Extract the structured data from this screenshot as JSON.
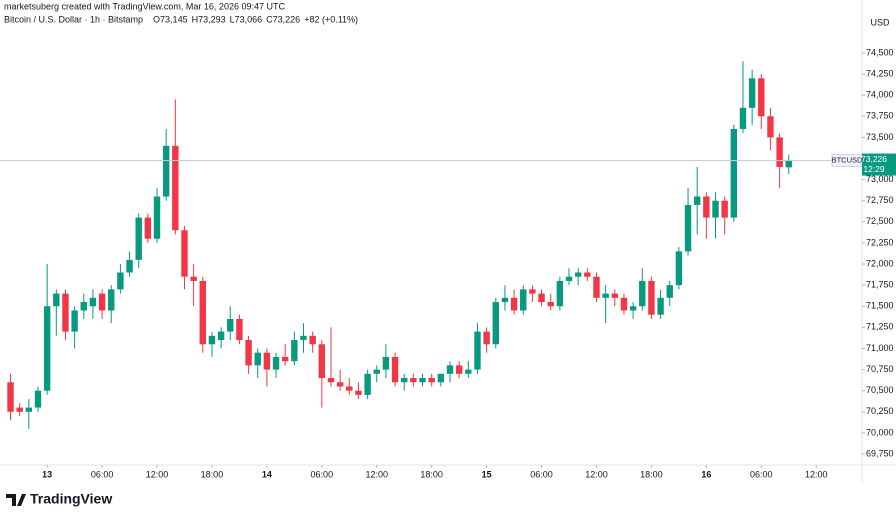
{
  "chart_data": {
    "type": "candlestick",
    "header": {
      "author_line": "marketsuberg created with TradingView.com, Mar 16, 2026 09:47 UTC",
      "symbol_line": "Bitcoin / U.S. Dollar · 1h · Bitstamp",
      "ohlc": [
        "O73,145",
        "H73,293",
        "L73,066",
        "C73,226"
      ],
      "change": "+82 (+0.11%)"
    },
    "currency": "USD",
    "logo": "TradingView",
    "up_color": "#089981",
    "down_color": "#f23645",
    "x": [
      -4,
      -3,
      -2,
      -1,
      0,
      1,
      2,
      3,
      4,
      5,
      6,
      7,
      8,
      9,
      10,
      11,
      12,
      13,
      14,
      15,
      16,
      17,
      18,
      19,
      20,
      21,
      22,
      23,
      24,
      25,
      26,
      27,
      28,
      29,
      30,
      31,
      32,
      33,
      34,
      35,
      36,
      37,
      38,
      39,
      40,
      41,
      42,
      43,
      44,
      45,
      46,
      47,
      48,
      49,
      50,
      51,
      52,
      53,
      54,
      55,
      56,
      57,
      58,
      59,
      60,
      61,
      62,
      63,
      64,
      65,
      66,
      67,
      68,
      69,
      70,
      71,
      72,
      73,
      74,
      75,
      76,
      77,
      78,
      79,
      80,
      81
    ],
    "open": [
      70600,
      70300,
      70250,
      70300,
      70500,
      71500,
      71650,
      71200,
      71450,
      71500,
      71650,
      71450,
      71700,
      71900,
      72050,
      72550,
      72300,
      72800,
      73400,
      72400,
      71850,
      71800,
      71050,
      71100,
      71200,
      71350,
      71100,
      70800,
      70950,
      70750,
      70900,
      70850,
      71100,
      71150,
      71050,
      70650,
      70600,
      70550,
      70500,
      70450,
      70700,
      70750,
      70900,
      70600,
      70650,
      70600,
      70650,
      70600,
      70700,
      70800,
      70700,
      70750,
      71200,
      71050,
      71550,
      71600,
      71450,
      71700,
      71650,
      71550,
      71500,
      71800,
      71850,
      71900,
      71850,
      71600,
      71650,
      71600,
      71450,
      71500,
      71800,
      71400,
      71600,
      71750,
      72150,
      72700,
      72800,
      72550,
      72750,
      72550,
      73600,
      73850,
      74200,
      73750,
      73500,
      73145
    ],
    "high": [
      70700,
      70350,
      70400,
      70550,
      72000,
      71700,
      71700,
      71500,
      71650,
      71700,
      71700,
      71750,
      72000,
      72150,
      72600,
      72600,
      72900,
      73600,
      73950,
      72450,
      72000,
      71850,
      71200,
      71250,
      71500,
      71400,
      71150,
      71000,
      71000,
      70950,
      71050,
      71200,
      71300,
      71200,
      71100,
      71250,
      70750,
      70650,
      70600,
      70750,
      70800,
      71050,
      70950,
      70700,
      70700,
      70700,
      70700,
      70700,
      70850,
      70850,
      70850,
      71300,
      71250,
      71600,
      71750,
      71700,
      71750,
      71750,
      71700,
      71650,
      71850,
      71950,
      71950,
      71950,
      71900,
      71750,
      71700,
      71650,
      71550,
      71950,
      71850,
      71700,
      71800,
      72200,
      72900,
      73150,
      72850,
      72850,
      72800,
      73650,
      74400,
      74300,
      74250,
      73850,
      73550,
      73293
    ],
    "low": [
      70150,
      70200,
      70050,
      70250,
      70450,
      71150,
      71100,
      71000,
      71350,
      71350,
      71350,
      71300,
      71650,
      71850,
      71950,
      72250,
      72250,
      72750,
      72350,
      71700,
      71500,
      70950,
      70900,
      71000,
      71100,
      71050,
      70700,
      70650,
      70550,
      70650,
      70800,
      70800,
      70950,
      70950,
      70300,
      70550,
      70500,
      70450,
      70400,
      70400,
      70600,
      70650,
      70550,
      70500,
      70550,
      70550,
      70550,
      70550,
      70600,
      70650,
      70650,
      70700,
      70950,
      71000,
      71450,
      71400,
      71400,
      71550,
      71500,
      71450,
      71450,
      71750,
      71750,
      71800,
      71550,
      71300,
      71500,
      71400,
      71350,
      71450,
      71350,
      71350,
      71500,
      71700,
      72100,
      72350,
      72300,
      72300,
      72350,
      72500,
      73550,
      73650,
      73600,
      73350,
      72900,
      73066
    ],
    "close": [
      70250,
      70250,
      70300,
      70500,
      71500,
      71650,
      71200,
      71450,
      71550,
      71600,
      71450,
      71700,
      71900,
      72050,
      72550,
      72300,
      72800,
      73400,
      72400,
      71850,
      71800,
      71050,
      71150,
      71200,
      71350,
      71100,
      70800,
      70950,
      70750,
      70900,
      70850,
      71100,
      71150,
      71050,
      70650,
      70600,
      70550,
      70500,
      70450,
      70700,
      70750,
      70900,
      70600,
      70650,
      70600,
      70650,
      70600,
      70700,
      70800,
      70700,
      70750,
      71200,
      71050,
      71550,
      71600,
      71450,
      71700,
      71650,
      71550,
      71500,
      71800,
      71850,
      71900,
      71850,
      71600,
      71650,
      71600,
      71450,
      71500,
      71800,
      71400,
      71600,
      71750,
      72150,
      72700,
      72800,
      72550,
      72750,
      72550,
      73600,
      73850,
      74200,
      73750,
      73500,
      73150,
      73226
    ],
    "last_price": 73226,
    "price_badge": {
      "symbol": "BTCUSD",
      "price": "73,226",
      "countdown": "12:29"
    },
    "xlim": [
      -5.15,
      89
    ],
    "xticks": [
      {
        "value": 0,
        "label": "13"
      },
      {
        "value": 6,
        "label": "06:00"
      },
      {
        "value": 12,
        "label": "12:00"
      },
      {
        "value": 18,
        "label": "18:00"
      },
      {
        "value": 24,
        "label": "14"
      },
      {
        "value": 30,
        "label": "06:00"
      },
      {
        "value": 36,
        "label": "12:00"
      },
      {
        "value": 42,
        "label": "18:00"
      },
      {
        "value": 48,
        "label": "15"
      },
      {
        "value": 54,
        "label": "06:00"
      },
      {
        "value": 60,
        "label": "12:00"
      },
      {
        "value": 66,
        "label": "18:00"
      },
      {
        "value": 72,
        "label": "16"
      },
      {
        "value": 78,
        "label": "06:00"
      },
      {
        "value": 84,
        "label": "12:00"
      }
    ],
    "ylim": [
      69620,
      74772
    ],
    "yticks": [
      {
        "value": 69750,
        "label": "69,750"
      },
      {
        "value": 70000,
        "label": "70,000"
      },
      {
        "value": 70250,
        "label": "70,250"
      },
      {
        "value": 70500,
        "label": "70,500"
      },
      {
        "value": 70750,
        "label": "70,750"
      },
      {
        "value": 71000,
        "label": "71,000"
      },
      {
        "value": 71250,
        "label": "71,250"
      },
      {
        "value": 71500,
        "label": "71,500"
      },
      {
        "value": 71750,
        "label": "71,750"
      },
      {
        "value": 72000,
        "label": "72,000"
      },
      {
        "value": 72250,
        "label": "72,250"
      },
      {
        "value": 72500,
        "label": "72,500"
      },
      {
        "value": 72750,
        "label": "72,750"
      },
      {
        "value": 73000,
        "label": "73,000"
      },
      {
        "value": 73250,
        "label": "73,250"
      },
      {
        "value": 73500,
        "label": "73,500"
      },
      {
        "value": 73750,
        "label": "73,750"
      },
      {
        "value": 74000,
        "label": "74,000"
      },
      {
        "value": 74250,
        "label": "74,250"
      },
      {
        "value": 74500,
        "label": "74,500"
      }
    ],
    "grid": false
  }
}
